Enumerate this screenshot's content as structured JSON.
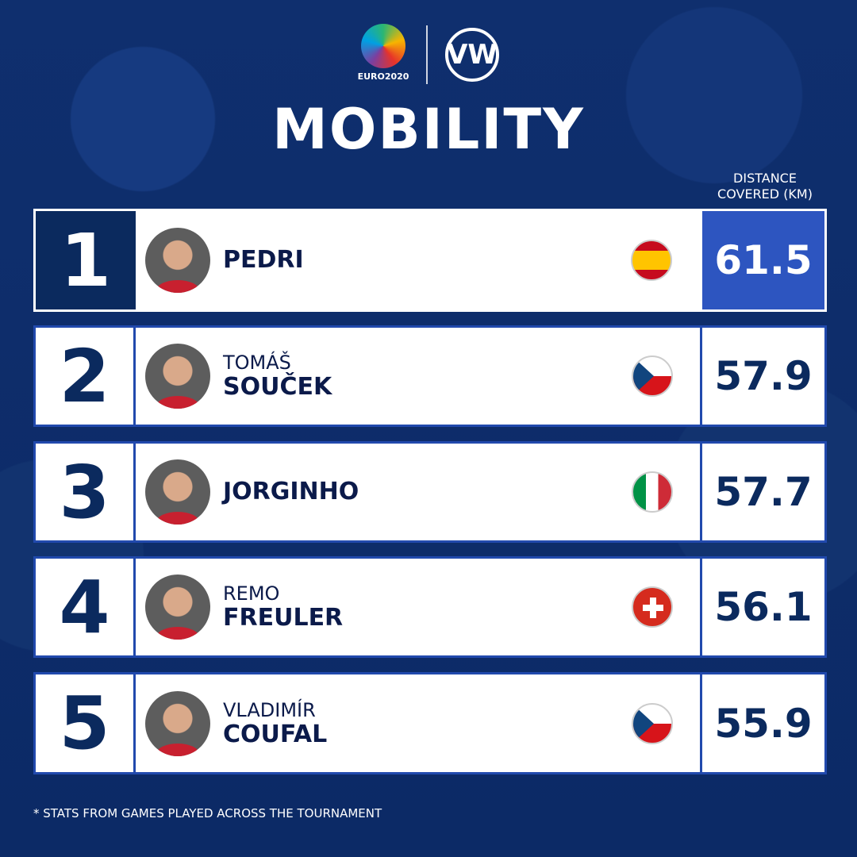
{
  "header": {
    "euro_logo_text": "EURO2020",
    "vw_logo": "VW",
    "title": "MOBILITY",
    "column_header": "DISTANCE COVERED (KM)"
  },
  "rows": [
    {
      "rank": "1",
      "first": "",
      "last": "PEDRI",
      "flag": "spain",
      "value": "61.5"
    },
    {
      "rank": "2",
      "first": "TOMÁŠ",
      "last": "SOUČEK",
      "flag": "czech-republic",
      "value": "57.9"
    },
    {
      "rank": "3",
      "first": "",
      "last": "JORGINHO",
      "flag": "italy",
      "value": "57.7"
    },
    {
      "rank": "4",
      "first": "REMO",
      "last": "FREULER",
      "flag": "switzerland",
      "value": "56.1"
    },
    {
      "rank": "5",
      "first": "VLADIMÍR",
      "last": "COUFAL",
      "flag": "czech-republic",
      "value": "55.9"
    }
  ],
  "footnote": "* STATS FROM GAMES PLAYED ACROSS THE TOURNAMENT",
  "colors": {
    "navy": "#0b2a5e",
    "highlight": "#2d55c0",
    "border": "#2149ad",
    "background": "#0e2d6b"
  }
}
